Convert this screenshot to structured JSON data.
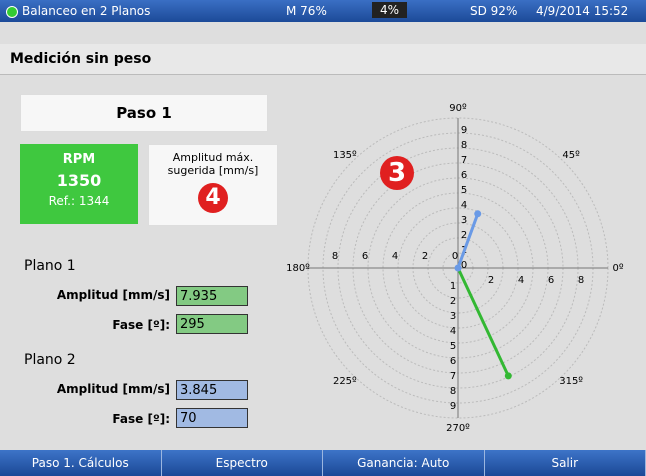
{
  "status_bar": {
    "app": "Balanceo en 2 Planos",
    "memory": "M 76%",
    "battery": "4%",
    "sd": "SD 92%",
    "datetime": "4/9/2014 15:52"
  },
  "header": {
    "title": "Medición sin peso"
  },
  "step": "Paso 1",
  "rpm": {
    "label": "RPM",
    "value": 1350,
    "reference": "Ref.: 1344"
  },
  "suggested": {
    "label": "Amplitud máx. sugerida [mm/s]",
    "badge": "4"
  },
  "planes": [
    {
      "name": "Plano 1",
      "amplitude_label": "Amplitud [mm/s]",
      "amplitude": 7.935,
      "phase_label": "Fase [º]:",
      "phase": 295,
      "color": "#33b833"
    },
    {
      "name": "Plano 2",
      "amplitude_label": "Amplitud [mm/s]",
      "amplitude": 3.845,
      "phase_label": "Fase [º]:",
      "phase": 70,
      "color": "#6a9ae6"
    }
  ],
  "polar": {
    "badge": "3",
    "rlim": [
      0,
      10
    ],
    "rings": [
      1,
      2,
      3,
      4,
      5,
      6,
      7,
      8,
      9,
      10
    ],
    "angle_labels": [
      {
        "value": 0,
        "label": "0º"
      },
      {
        "value": 45,
        "label": "45º"
      },
      {
        "value": 90,
        "label": "90º"
      },
      {
        "value": 135,
        "label": "135º"
      },
      {
        "value": 180,
        "label": "180º"
      },
      {
        "value": 225,
        "label": "225º"
      },
      {
        "value": 270,
        "label": "270º"
      },
      {
        "value": 315,
        "label": "315º"
      }
    ],
    "horizontal_ticks": [
      0,
      2,
      4,
      6,
      8
    ],
    "vertical_ticks": [
      0,
      1,
      2,
      3,
      4,
      5,
      6,
      7,
      8,
      9
    ]
  },
  "buttons": [
    "Paso 1. Cálculos",
    "Espectro",
    "Ganancia: Auto",
    "Salir"
  ]
}
